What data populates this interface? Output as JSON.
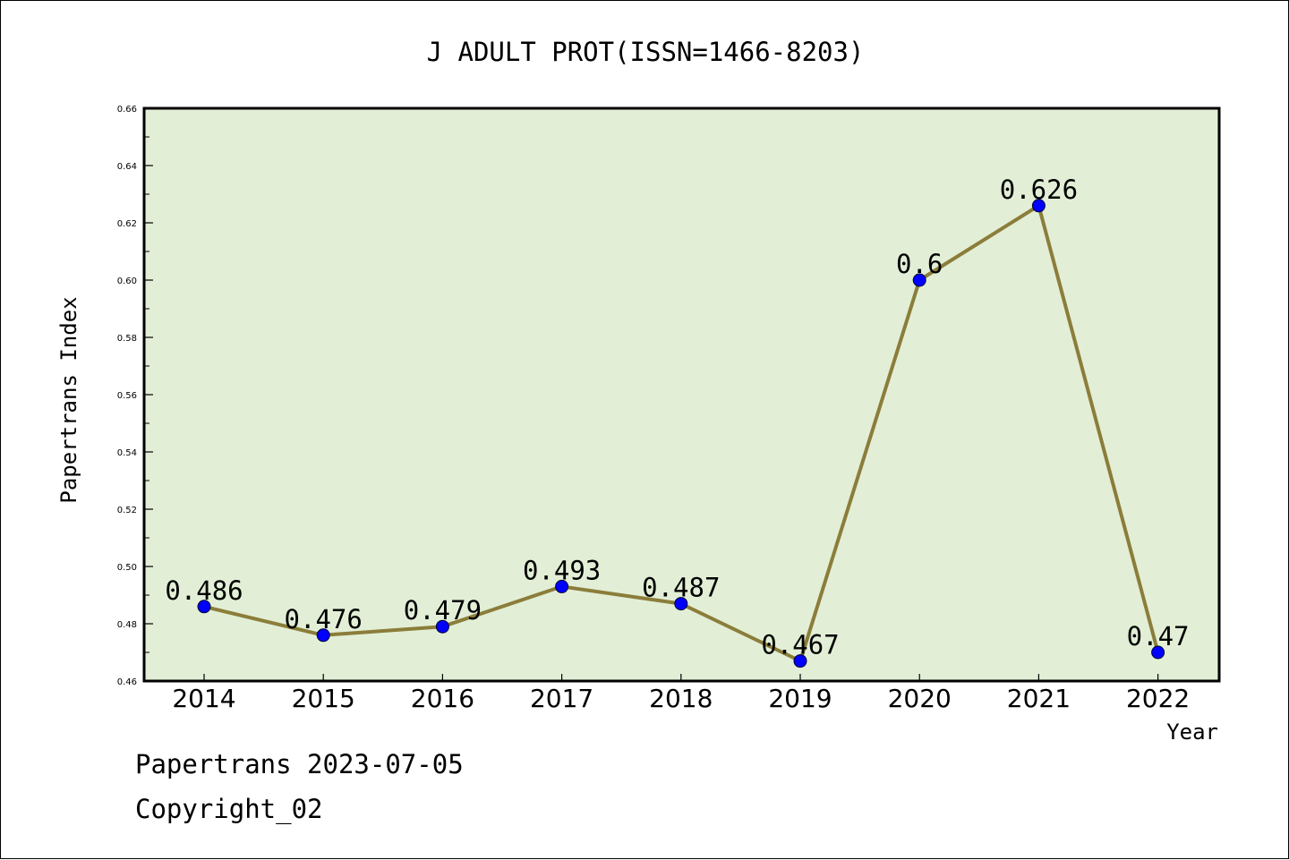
{
  "chart_data": {
    "type": "line",
    "title": "J ADULT PROT(ISSN=1466-8203)",
    "xlabel": "Year",
    "ylabel": "Papertrans Index",
    "x": [
      "2014",
      "2015",
      "2016",
      "2017",
      "2018",
      "2019",
      "2020",
      "2021",
      "2022"
    ],
    "series": [
      {
        "values": [
          0.486,
          0.476,
          0.479,
          0.493,
          0.487,
          0.467,
          0.6,
          0.626,
          0.47
        ],
        "labels": [
          "0.486",
          "0.476",
          "0.479",
          "0.493",
          "0.487",
          "0.467",
          "0.6",
          "0.626",
          "0.47"
        ]
      }
    ],
    "ylim": [
      0.46,
      0.66
    ],
    "ytick_labels": [
      "0.46",
      "0.48",
      "0.50",
      "0.52",
      "0.54",
      "0.56",
      "0.58",
      "0.60",
      "0.62",
      "0.64",
      "0.66"
    ],
    "grid": false,
    "colors": {
      "line": "#8b7d3a",
      "marker": "#0000ff",
      "plot_background": "#e2efd6"
    }
  },
  "footer": {
    "line1": "Papertrans 2023-07-05",
    "line2": "Copyright_02"
  }
}
